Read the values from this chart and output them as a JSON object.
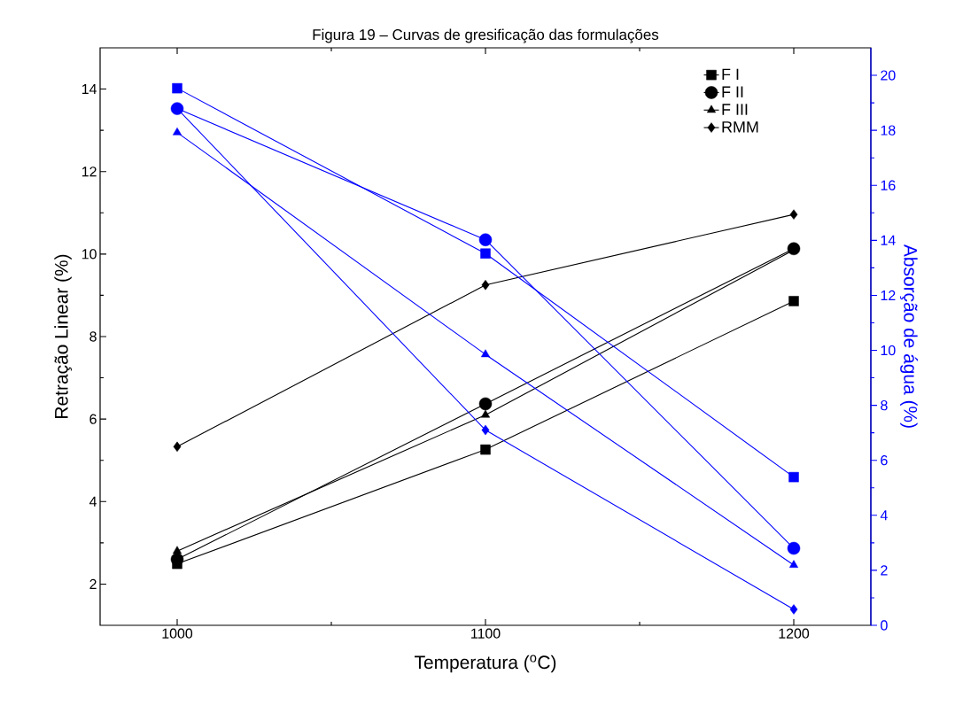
{
  "chart_data": {
    "type": "line",
    "title": "Figura 19 – Curvas de gresificação das formulações",
    "xlabel": "Temperatura ($^{o}$C)",
    "ylabel": "Retração Linear (%)",
    "y2label": "Absorção de água (%)",
    "x": [
      1000,
      1100,
      1200
    ],
    "xlim": [
      975,
      1225
    ],
    "xticks": [
      1000,
      1100,
      1200
    ],
    "ylim": [
      1,
      15
    ],
    "yticks": [
      2,
      4,
      6,
      8,
      10,
      12,
      14
    ],
    "y2lim": [
      0,
      21
    ],
    "y2ticks": [
      0,
      2,
      4,
      6,
      8,
      10,
      12,
      14,
      16,
      18,
      20
    ],
    "grid": false,
    "legend": "top right",
    "line_style": "solid",
    "series": [
      {
        "name": "F I",
        "color": "#000000",
        "marker": "square",
        "values": [
          2.49,
          5.26,
          8.86
        ]
      },
      {
        "name": "F II",
        "color": "#000000",
        "marker": "circle",
        "values": [
          2.6,
          6.37,
          10.13
        ]
      },
      {
        "name": "F III",
        "color": "#000000",
        "marker": "triangle",
        "values": [
          2.8,
          6.1,
          10.1
        ]
      },
      {
        "name": "RMM",
        "color": "#000000",
        "marker": "diamond",
        "values": [
          5.33,
          9.25,
          10.96
        ]
      },
      {
        "color": "#0000ff",
        "marker": "square",
        "axis": "y2",
        "values": [
          19.53,
          13.52,
          5.39
        ]
      },
      {
        "color": "#0000ff",
        "marker": "circle",
        "axis": "y2",
        "values": [
          18.79,
          14.02,
          2.8
        ]
      },
      {
        "color": "#0000ff",
        "marker": "triangle",
        "axis": "y2",
        "values": [
          17.92,
          9.85,
          2.19
        ]
      },
      {
        "color": "#0000ff",
        "marker": "diamond",
        "axis": "y2",
        "values": [
          18.79,
          7.1,
          0.58
        ]
      }
    ]
  }
}
